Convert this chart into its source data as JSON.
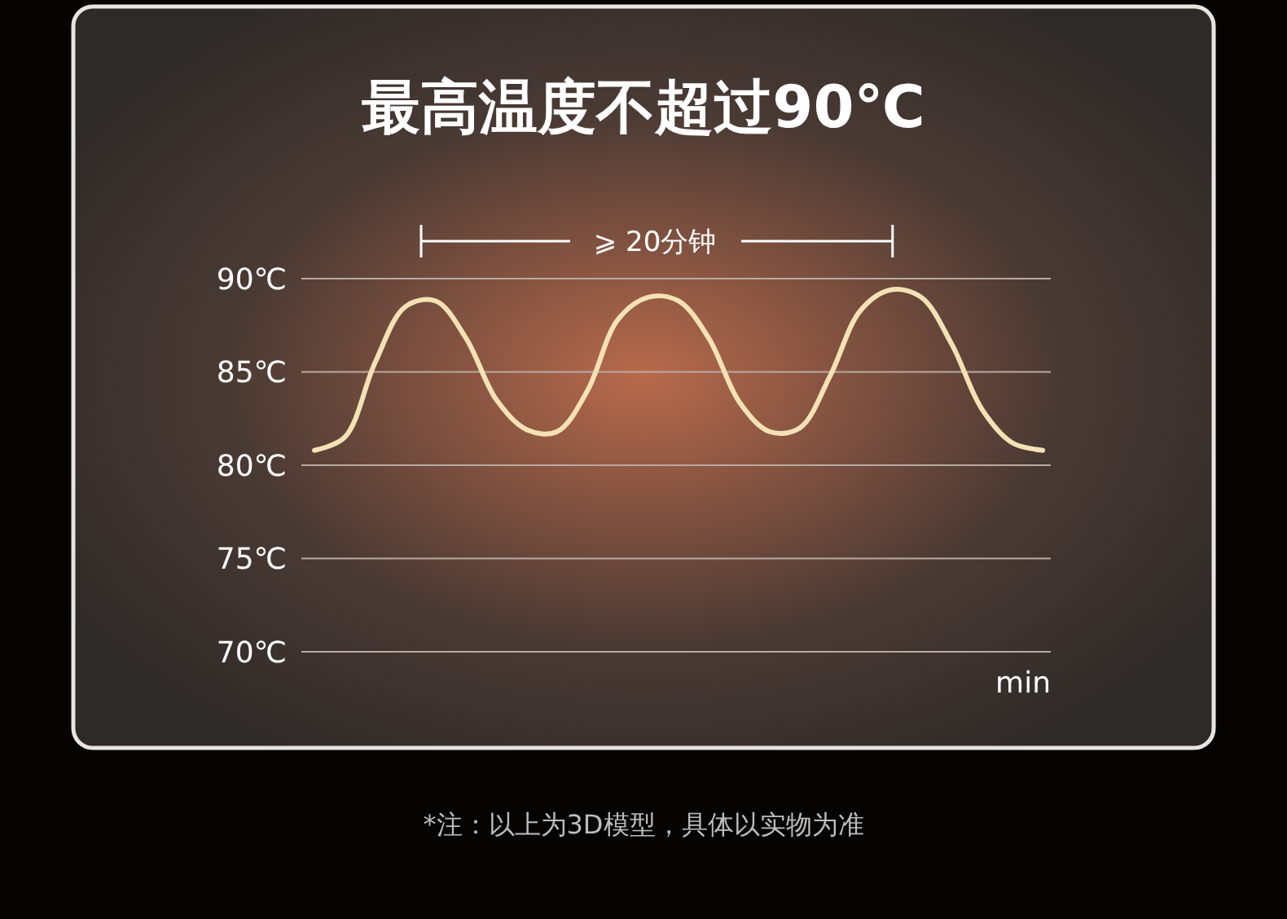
{
  "chart_data": {
    "type": "line",
    "title": "最高温度不超过90℃",
    "xlabel": "min",
    "categories": [
      null,
      null,
      null,
      null,
      null,
      null,
      null,
      null,
      null,
      null,
      null,
      null,
      null,
      null,
      null,
      null,
      null,
      null,
      null,
      null,
      null,
      null,
      null,
      null,
      null
    ],
    "series": [
      {
        "color": "#f5e2b4",
        "values": [
          80.8,
          81.5,
          85.5,
          88.5,
          88.8,
          86.8,
          83.5,
          81.9,
          81.8,
          84.0,
          87.8,
          89.0,
          88.8,
          86.8,
          83.4,
          81.8,
          82.0,
          84.8,
          88.3,
          89.4,
          89.0,
          86.5,
          83.0,
          81.2,
          80.8
        ]
      }
    ],
    "ylim": [
      70,
      90
    ],
    "yticks": [
      {
        "value": 70,
        "label": "70℃"
      },
      {
        "value": 75,
        "label": "75℃"
      },
      {
        "value": 80,
        "label": "80℃"
      },
      {
        "value": 85,
        "label": "85℃"
      },
      {
        "value": 90,
        "label": "90℃"
      }
    ],
    "grid": "y",
    "marker": "none",
    "line_style": "solid",
    "annotations": [
      "⩾ 20分钟",
      "*注：以上为3D模型，具体以实物为准"
    ]
  }
}
